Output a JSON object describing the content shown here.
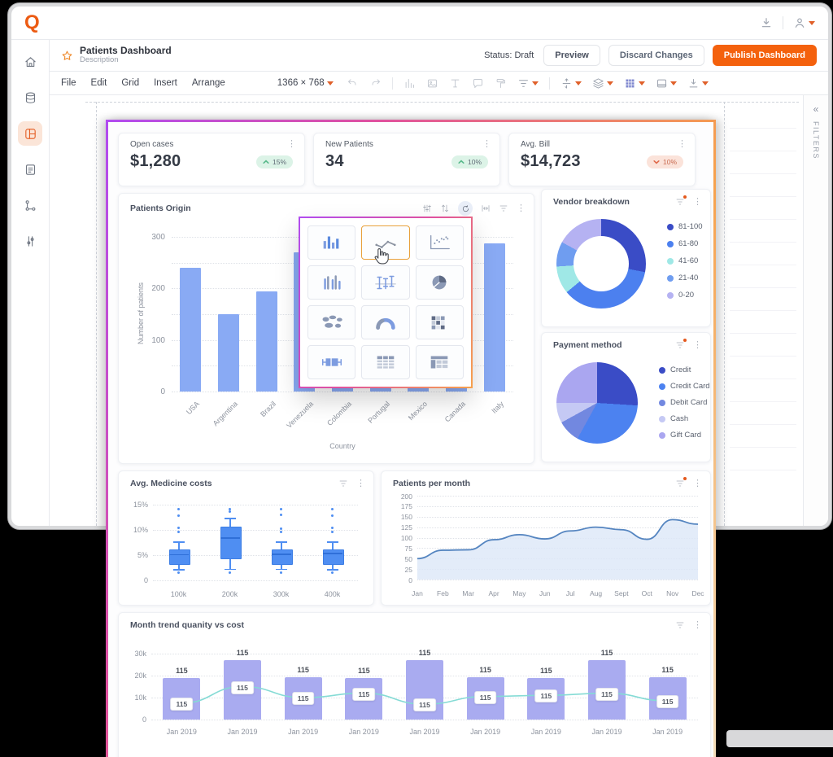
{
  "app": {
    "logo_letter": "Q",
    "header": {
      "title": "Patients Dashboard",
      "subtitle": "Description",
      "status": "Status: Draft",
      "preview_label": "Preview",
      "discard_label": "Discard Changes",
      "publish_label": "Publish Dashboard"
    },
    "menubar": {
      "menus": [
        "File",
        "Edit",
        "Grid",
        "Insert",
        "Arrange"
      ],
      "canvas_size": "1366 × 768"
    },
    "sidebar_items": [
      "home",
      "data",
      "dashboards",
      "reports",
      "automation",
      "filters"
    ],
    "sidebar_active": "dashboards",
    "filters_panel": {
      "label": "FILTERS",
      "collapse_icon": "«"
    }
  },
  "kpis": [
    {
      "title": "Open cases",
      "value": "$1,280",
      "delta": "15%",
      "direction": "up"
    },
    {
      "title": "New Patients",
      "value": "34",
      "delta": "10%",
      "direction": "up"
    },
    {
      "title": "Avg. Bill",
      "value": "$14,723",
      "delta": "10%",
      "direction": "down"
    }
  ],
  "charts": {
    "patients_origin": {
      "title": "Patients Origin",
      "ylabel": "Number of patients",
      "xlabel": "Country",
      "yticks": [
        300,
        200,
        100,
        0
      ],
      "ymax": 300,
      "categories": [
        "USA",
        "Argentina",
        "Brazil",
        "Venezuela",
        "Colombia",
        "Portugal",
        "Mexico",
        "Canada",
        "Italy"
      ],
      "values": [
        240,
        150,
        195,
        270,
        160,
        150,
        155,
        280,
        287
      ],
      "bar_color": "#89aaf4"
    },
    "vendor_breakdown": {
      "title": "Vendor breakdown",
      "type": "donut",
      "legend": [
        "81-100",
        "61-80",
        "41-60",
        "21-40",
        "0-20"
      ],
      "values": [
        28,
        36,
        10,
        9,
        17
      ],
      "colors": [
        "#3a4cc6",
        "#4c80ef",
        "#9fe8e6",
        "#6f9df0",
        "#b5b2f2"
      ]
    },
    "payment_method": {
      "title": "Payment method",
      "type": "pie",
      "legend": [
        "Credit",
        "Credit Card",
        "Debit Card",
        "Cash",
        "Gift Card"
      ],
      "values": [
        26,
        32,
        9,
        8,
        25
      ],
      "colors": [
        "#3a4cc6",
        "#4c82f0",
        "#7288e0",
        "#c5c9f4",
        "#aaa6f0"
      ]
    },
    "medicine_costs": {
      "title": "Avg. Medicine costs",
      "yticks": [
        "15%",
        "10%",
        "5%",
        "0"
      ],
      "ytick_vals": [
        15,
        10,
        5,
        0
      ],
      "ymax": 16.5,
      "categories": [
        "100k",
        "200k",
        "300k",
        "400k"
      ],
      "boxes": [
        {
          "low": 2.2,
          "q1": 3.4,
          "median": 5.2,
          "q3": 6.1,
          "high": 7.7,
          "outliers": [
            1.5,
            9.6,
            10.4,
            12.9,
            14.1
          ]
        },
        {
          "low": 2.3,
          "q1": 4.6,
          "median": 8.5,
          "q3": 10.7,
          "high": 12.4,
          "outliers": [
            1.5,
            13.6,
            14.2
          ]
        },
        {
          "low": 2.3,
          "q1": 3.4,
          "median": 5.3,
          "q3": 6.2,
          "high": 7.7,
          "outliers": [
            1.5,
            9.6,
            10.3,
            13.0,
            14.2
          ]
        },
        {
          "low": 2.2,
          "q1": 3.4,
          "median": 5.5,
          "q3": 6.2,
          "high": 7.7,
          "outliers": [
            1.6,
            9.7,
            10.5,
            12.9,
            14.1
          ]
        }
      ],
      "box_color": "#4f8ef2"
    },
    "patients_per_month": {
      "title": "Patients per month",
      "yticks": [
        200,
        175,
        150,
        125,
        100,
        75,
        50,
        25,
        0
      ],
      "ymax": 200,
      "months": [
        "Jan",
        "Feb",
        "Mar",
        "Apr",
        "May",
        "Jun",
        "Jul",
        "Aug",
        "Sept",
        "Oct",
        "Nov",
        "Dec"
      ],
      "values": [
        50,
        70,
        71,
        95,
        107,
        97,
        116,
        125,
        119,
        96,
        143,
        132
      ],
      "line_color": "#5585c0",
      "fill_color": "#dce7f7"
    },
    "month_trend": {
      "title": "Month trend quanity vs cost",
      "yticks": [
        "30k",
        "20k",
        "10k",
        "0"
      ],
      "ytick_vals": [
        30,
        20,
        10,
        0
      ],
      "ymax": 30,
      "x_labels": [
        "Jan 2019",
        "Jan 2019",
        "Jan 2019",
        "Jan 2019",
        "Jan 2019",
        "Jan 2019",
        "Jan 2019",
        "Jan 2019",
        "Jan 2019"
      ],
      "bar_values_k": [
        19,
        27,
        19.3,
        19,
        27,
        19.3,
        19,
        27,
        19.3
      ],
      "line_values_k": [
        7.5,
        15,
        10,
        12,
        7,
        10.5,
        11,
        12,
        8.5
      ],
      "point_label": "115",
      "bar_color": "#a9abf0",
      "line_color": "#85dbd5"
    }
  },
  "picker": {
    "tiles": [
      "bar",
      "line",
      "scatter",
      "histogram",
      "error-bars",
      "pie",
      "map",
      "gauge",
      "heatmap",
      "box-plot",
      "table",
      "pivot-table"
    ],
    "selected": "line"
  },
  "colors": {
    "accent_orange": "#f4610d",
    "gradient_border": [
      "#b14cf0",
      "#e0519e",
      "#f6a14d"
    ],
    "badge_up_bg": "#dcf3e7",
    "badge_down_bg": "#fbe3da"
  }
}
